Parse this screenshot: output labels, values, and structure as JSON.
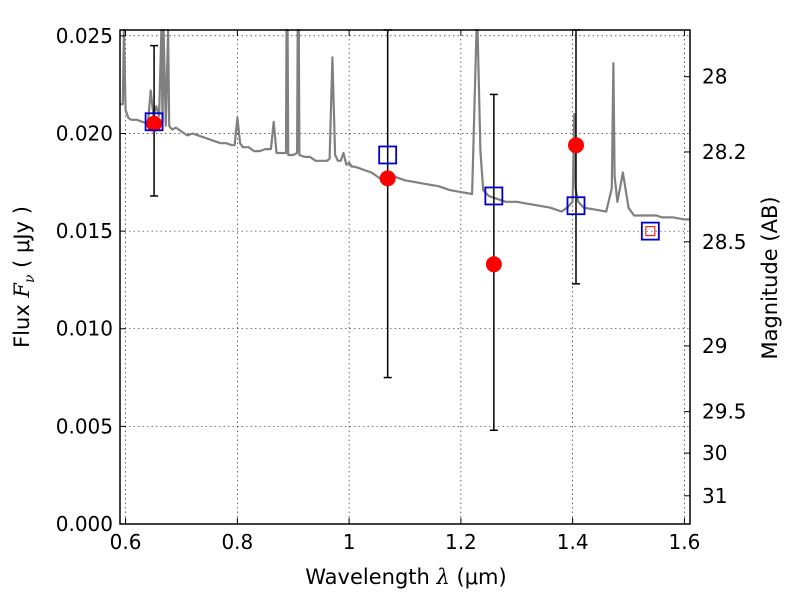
{
  "chart_data": {
    "type": "scatter",
    "title": "",
    "xlabel": {
      "prefix": "Wavelength  ",
      "symbol": "λ",
      "suffix": " (μm)"
    },
    "ylabel": {
      "prefix": "Flux  ",
      "symbol": "F",
      "subscript": "ν",
      "suffix": "  ( μJy )"
    },
    "y2label": "Magnitude (AB)",
    "xlim": [
      0.59,
      1.61
    ],
    "ylim": [
      0.0,
      0.0253
    ],
    "grid": true,
    "x_ticks": [
      0.6,
      0.8,
      1.0,
      1.2,
      1.4,
      1.6
    ],
    "x_tick_labels": [
      "0.6",
      "0.8",
      "1",
      "1.2",
      "1.4",
      "1.6"
    ],
    "y_ticks": [
      0.0,
      0.005,
      0.01,
      0.015,
      0.02,
      0.025
    ],
    "y_tick_labels": [
      "0.000",
      "0.005",
      "0.010",
      "0.015",
      "0.020",
      "0.025"
    ],
    "y2_ticks": [
      28,
      28.2,
      28.5,
      29,
      29.5,
      30,
      31
    ],
    "y2_tick_labels": [
      "28",
      "28.2",
      "28.5",
      "29",
      "29.5",
      "30",
      "31"
    ],
    "colors": {
      "spectrum": "#808080",
      "observed": "#ff0000",
      "model": "#0000cc",
      "errorbar": "#000000"
    },
    "series": [
      {
        "marker": "circle",
        "x": [
          0.651,
          1.069,
          1.259,
          1.406
        ],
        "y": [
          0.0205,
          0.0177,
          0.0133,
          0.0194
        ],
        "yerr_low": [
          0.0168,
          0.0075,
          0.0048,
          0.0123
        ],
        "yerr_high": [
          0.0245,
          0.0253,
          0.022,
          0.0253
        ]
      },
      {
        "marker": "square",
        "x": [
          0.651,
          1.069,
          1.259,
          1.406,
          1.539
        ],
        "y": [
          0.0206,
          0.0189,
          0.0168,
          0.0163,
          0.015
        ]
      },
      {
        "marker": "small-square",
        "x": [
          1.539
        ],
        "y": [
          0.015
        ]
      },
      {
        "type": "line",
        "x": [
          0.59,
          0.595,
          0.597,
          0.6,
          0.605,
          0.61,
          0.62,
          0.63,
          0.64,
          0.645,
          0.65,
          0.655,
          0.66,
          0.664,
          0.666,
          0.668,
          0.672,
          0.676,
          0.678,
          0.68,
          0.684,
          0.69,
          0.7,
          0.71,
          0.72,
          0.73,
          0.74,
          0.75,
          0.76,
          0.77,
          0.78,
          0.79,
          0.795,
          0.8,
          0.805,
          0.81,
          0.82,
          0.83,
          0.84,
          0.85,
          0.86,
          0.865,
          0.87,
          0.875,
          0.88,
          0.887,
          0.888,
          0.889,
          0.89,
          0.891,
          0.9,
          0.907,
          0.908,
          0.909,
          0.91,
          0.911,
          0.92,
          0.93,
          0.94,
          0.95,
          0.96,
          0.965,
          0.97,
          0.975,
          0.98,
          0.985,
          0.99,
          0.995,
          1.0,
          1.005,
          1.01,
          1.02,
          1.03,
          1.04,
          1.05,
          1.06,
          1.08,
          1.1,
          1.12,
          1.14,
          1.16,
          1.18,
          1.2,
          1.22,
          1.228,
          1.229,
          1.23,
          1.235,
          1.24,
          1.25,
          1.26,
          1.28,
          1.3,
          1.32,
          1.34,
          1.36,
          1.38,
          1.39,
          1.4,
          1.403,
          1.405,
          1.41,
          1.42,
          1.44,
          1.46,
          1.47,
          1.473,
          1.475,
          1.48,
          1.49,
          1.5,
          1.51,
          1.52,
          1.53,
          1.54,
          1.55,
          1.56,
          1.58,
          1.6,
          1.61
        ],
        "y": [
          0.0215,
          0.0215,
          0.0253,
          0.0212,
          0.0208,
          0.0207,
          0.0207,
          0.0206,
          0.0205,
          0.0222,
          0.0209,
          0.0214,
          0.0209,
          0.0253,
          0.0205,
          0.0253,
          0.0204,
          0.0253,
          0.0204,
          0.0203,
          0.0202,
          0.0203,
          0.0201,
          0.0199,
          0.02,
          0.0199,
          0.0198,
          0.0197,
          0.0196,
          0.0195,
          0.0195,
          0.0194,
          0.0194,
          0.0208,
          0.0195,
          0.0193,
          0.0193,
          0.0191,
          0.0191,
          0.0192,
          0.0192,
          0.0206,
          0.019,
          0.019,
          0.019,
          0.019,
          0.0253,
          0.0253,
          0.0253,
          0.0189,
          0.0189,
          0.019,
          0.0253,
          0.0253,
          0.0253,
          0.0189,
          0.0188,
          0.0188,
          0.0186,
          0.0186,
          0.0186,
          0.0187,
          0.0239,
          0.0189,
          0.0186,
          0.0186,
          0.019,
          0.0184,
          0.0185,
          0.0183,
          0.0183,
          0.0182,
          0.0181,
          0.018,
          0.0178,
          0.0176,
          0.0178,
          0.0176,
          0.0175,
          0.0174,
          0.0173,
          0.0171,
          0.017,
          0.0169,
          0.0253,
          0.0253,
          0.0253,
          0.0191,
          0.0171,
          0.0168,
          0.0167,
          0.0165,
          0.0165,
          0.0164,
          0.0163,
          0.0162,
          0.016,
          0.0162,
          0.0165,
          0.021,
          0.0172,
          0.0165,
          0.0162,
          0.0161,
          0.016,
          0.0172,
          0.0236,
          0.0178,
          0.0165,
          0.018,
          0.0162,
          0.0158,
          0.0158,
          0.0158,
          0.0158,
          0.0158,
          0.0157,
          0.0157,
          0.0156,
          0.0156
        ]
      }
    ]
  }
}
